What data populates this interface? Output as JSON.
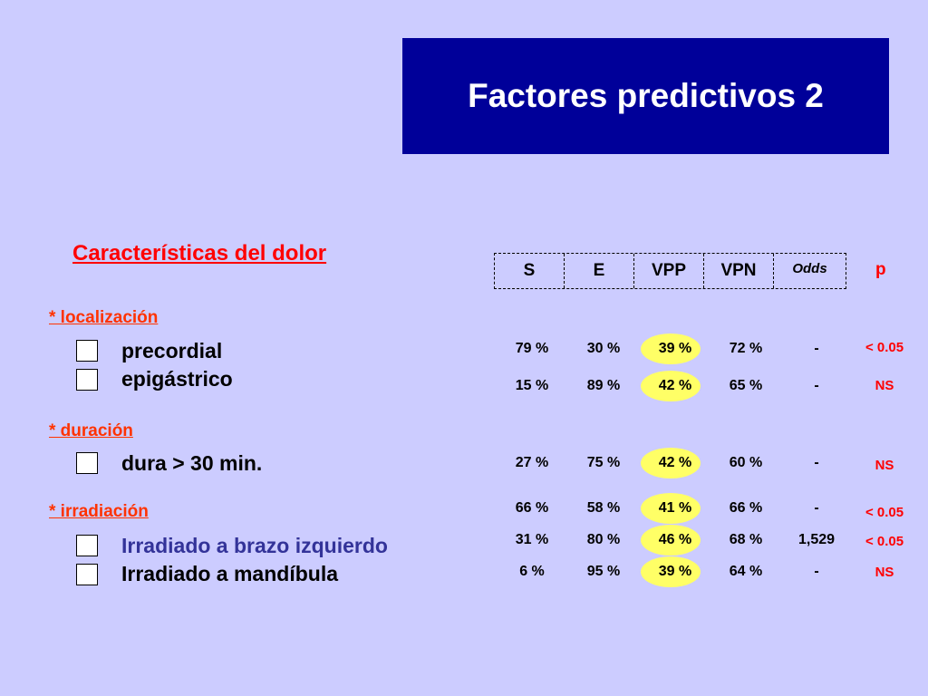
{
  "title": "Factores predictivos 2",
  "subtitle": "Características del dolor",
  "columns": [
    "S",
    "E",
    "VPP",
    "VPN",
    "Odds"
  ],
  "p_header": "p",
  "sections": {
    "localizacion": "* localización",
    "duracion": "* duración",
    "irradiacion": "* irradiación"
  },
  "rows": [
    {
      "label": "precordial",
      "checkbox": true,
      "s": "79 %",
      "e": "30 %",
      "vpp": "39 %",
      "vpn": "72 %",
      "odds": "-",
      "p": "< 0.05"
    },
    {
      "label": "epigástrico",
      "checkbox": true,
      "s": "15 %",
      "e": "89 %",
      "vpp": "42 %",
      "vpn": "65 %",
      "odds": "-",
      "p": "NS"
    },
    {
      "label": "dura > 30 min.",
      "checkbox": true,
      "s": "27 %",
      "e": "75 %",
      "vpp": "42 %",
      "vpn": "60 %",
      "odds": "-",
      "p": "NS"
    },
    {
      "label": "",
      "checkbox": false,
      "s": "66 %",
      "e": "58 %",
      "vpp": "41 %",
      "vpn": "66 %",
      "odds": "-",
      "p": "< 0.05"
    },
    {
      "label": "Irradiado a brazo izquierdo",
      "checkbox": true,
      "s": "31 %",
      "e": "80 %",
      "vpp": "46 %",
      "vpn": "68 %",
      "odds": "1,529",
      "p": "< 0.05"
    },
    {
      "label": "Irradiado a mandíbula",
      "checkbox": true,
      "s": "6 %",
      "e": "95 %",
      "vpp": "39 %",
      "vpn": "64 %",
      "odds": "-",
      "p": "NS"
    }
  ],
  "colors": {
    "background": "#ccccff",
    "title_bg": "#000099",
    "accent_red": "#ff0000",
    "section_orange": "#ff3300",
    "highlight": "#ffff66",
    "blue_label": "#333399"
  }
}
